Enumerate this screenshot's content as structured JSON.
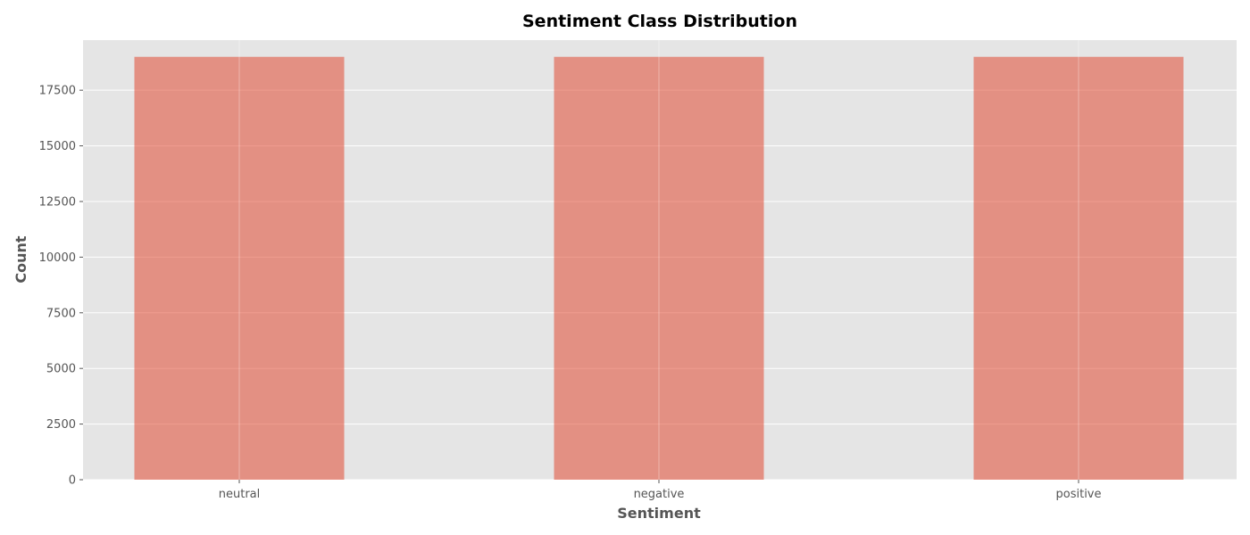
{
  "chart_data": {
    "type": "bar",
    "title": "Sentiment Class Distribution",
    "xlabel": "Sentiment",
    "ylabel": "Count",
    "categories": [
      "neutral",
      "negative",
      "positive"
    ],
    "values": [
      19000,
      19000,
      19000
    ],
    "ylim": [
      0,
      19750
    ],
    "yticks": [
      0,
      2500,
      5000,
      7500,
      10000,
      12500,
      15000,
      17500
    ],
    "grid": true,
    "legend": "none",
    "colors": {
      "bar": "#E24A33",
      "bar_opacity": 0.55,
      "plot_background": "#E5E5E5",
      "grid": "#FFFFFF",
      "tick_text": "#555555",
      "title_text": "#000000"
    }
  }
}
